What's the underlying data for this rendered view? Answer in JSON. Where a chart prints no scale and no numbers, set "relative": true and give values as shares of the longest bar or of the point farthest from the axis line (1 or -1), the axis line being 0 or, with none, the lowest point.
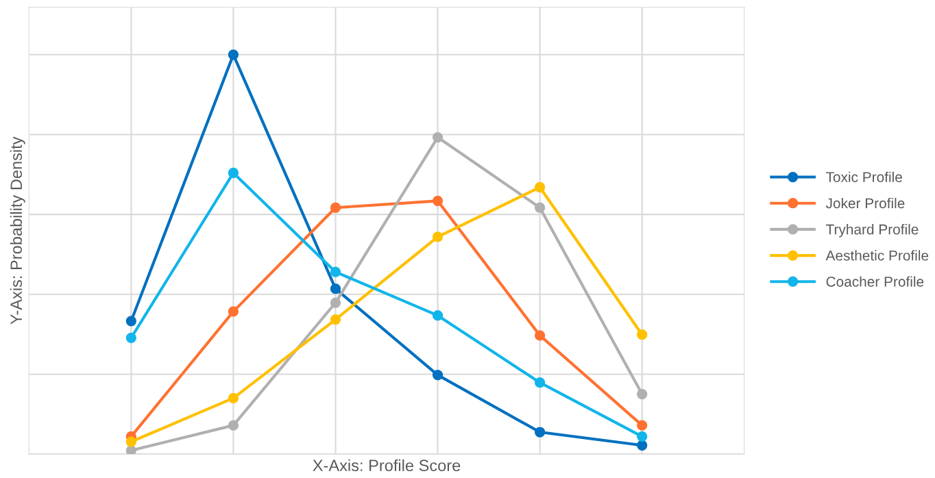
{
  "chart_data": {
    "type": "line",
    "relative": true,
    "xlabel": "X-Axis: Profile Score",
    "ylabel": "Y-Axis: Probability Density",
    "categories": [
      null,
      null,
      null,
      null,
      null,
      null
    ],
    "series": [
      {
        "name": "Toxic Profile",
        "color": "#0070c0",
        "values": [
          0.333,
          1,
          0.414,
          0.198,
          0.055,
          0.022
        ]
      },
      {
        "name": "Joker Profile",
        "color": "#ff7131",
        "values": [
          0.044,
          0.357,
          0.617,
          0.634,
          0.297,
          0.072
        ]
      },
      {
        "name": "Tryhard Profile",
        "color": "#b0b0b0",
        "values": [
          0.009,
          0.072,
          0.379,
          0.793,
          0.617,
          0.15
        ]
      },
      {
        "name": "Aesthetic Profile",
        "color": "#ffc000",
        "values": [
          0.031,
          0.14,
          0.337,
          0.544,
          0.668,
          0.299
        ]
      },
      {
        "name": "Coacher Profile",
        "color": "#12b5ea",
        "values": [
          0.291,
          0.704,
          0.456,
          0.347,
          0.179,
          0.044
        ]
      }
    ],
    "grid": true,
    "legend": "right",
    "marker": "circle",
    "line_style": "solid"
  }
}
